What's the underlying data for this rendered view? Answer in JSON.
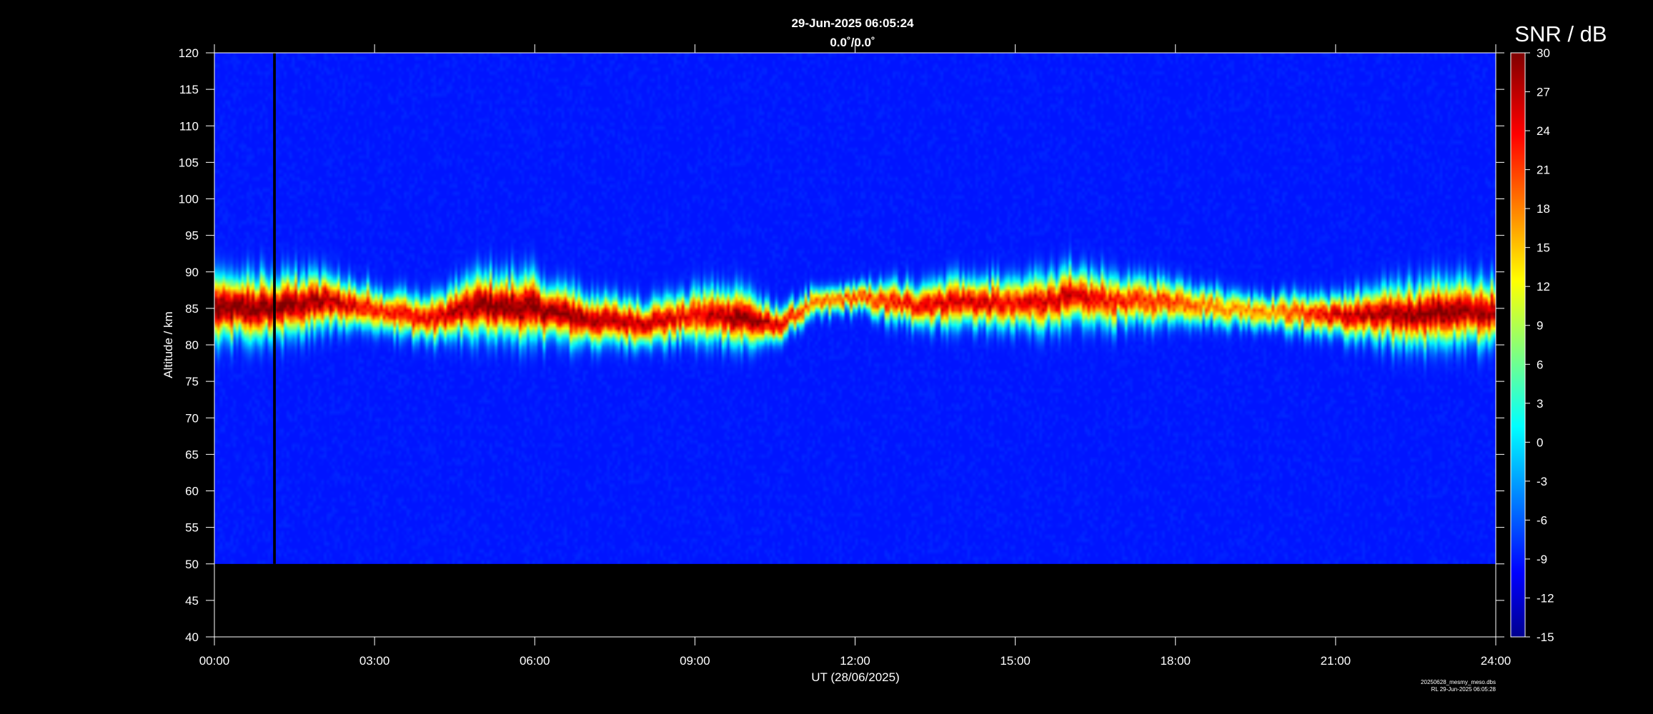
{
  "header": {
    "title": "29-Jun-2025 06:05:24",
    "subtitle": "0.0˚/0.0˚"
  },
  "footer": {
    "file_name": "20250628_mesmy_meso.dbs",
    "created": "RL 29-Jun-2025 06:05:28"
  },
  "colors": {
    "background": "#000000",
    "no_data": "#00008c",
    "axis": "#ffffff",
    "data_gap": "#000000"
  },
  "chart_data": {
    "type": "heatmap",
    "xlabel": "UT (28/06/2025)",
    "ylabel": "Altitude / km",
    "colorbar_label": "SNR / dB",
    "colormap": "jet",
    "xlim_hours": [
      0,
      24
    ],
    "ylim": [
      40,
      120
    ],
    "data_altitude_range": [
      50,
      120
    ],
    "clim": [
      -15,
      30
    ],
    "x_tick_labels": [
      "00:00",
      "03:00",
      "06:00",
      "09:00",
      "12:00",
      "15:00",
      "18:00",
      "21:00",
      "24:00"
    ],
    "x_tick_hours": [
      0,
      3,
      6,
      9,
      12,
      15,
      18,
      21,
      24
    ],
    "y_ticks": [
      40,
      45,
      50,
      55,
      60,
      65,
      70,
      75,
      80,
      85,
      90,
      95,
      100,
      105,
      110,
      115,
      120
    ],
    "colorbar_ticks": [
      -15,
      -12,
      -9,
      -6,
      -3,
      0,
      3,
      6,
      9,
      12,
      15,
      18,
      21,
      24,
      27,
      30
    ],
    "data_gap_hours": [
      1.1,
      1.15
    ],
    "layer_profile": {
      "hours": [
        0.0,
        1.0,
        2.0,
        3.0,
        4.0,
        5.0,
        6.0,
        7.0,
        8.0,
        9.0,
        9.8,
        10.5,
        11.2,
        12.0,
        13.0,
        14.0,
        15.0,
        16.0,
        17.0,
        18.0,
        19.0,
        20.0,
        21.0,
        22.0,
        23.0,
        24.0
      ],
      "center_km": [
        85.0,
        85.0,
        86.0,
        85.0,
        83.5,
        85.5,
        85.0,
        83.5,
        83.0,
        84.0,
        84.0,
        82.5,
        85.5,
        86.5,
        85.5,
        86.0,
        85.5,
        86.5,
        86.0,
        86.0,
        85.0,
        84.5,
        84.0,
        84.0,
        84.5,
        84.5
      ],
      "thickness_km": [
        9.0,
        9.0,
        8.0,
        6.0,
        6.0,
        9.0,
        9.0,
        7.0,
        6.0,
        7.0,
        8.0,
        5.0,
        4.0,
        4.0,
        6.0,
        7.0,
        7.0,
        8.0,
        7.0,
        6.0,
        5.0,
        5.0,
        6.0,
        8.0,
        9.0,
        9.0
      ],
      "peak_snr_db": [
        30,
        30,
        28,
        22,
        24,
        30,
        30,
        28,
        27,
        24,
        30,
        26,
        18,
        20,
        24,
        26,
        24,
        26,
        22,
        20,
        16,
        18,
        26,
        28,
        30,
        28
      ]
    }
  }
}
